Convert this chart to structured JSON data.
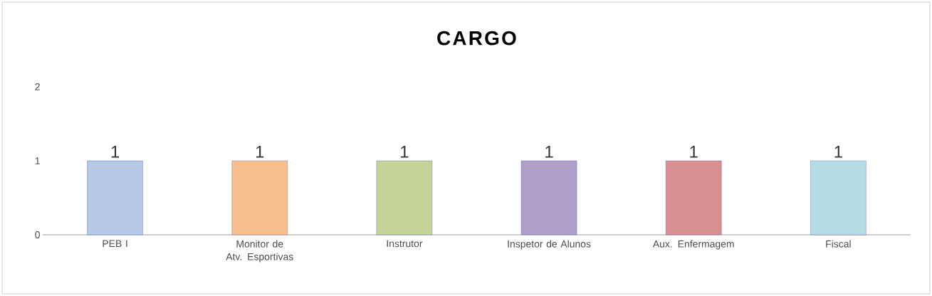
{
  "chart_data": {
    "type": "bar",
    "title": "CARGO",
    "categories": [
      "PEB I",
      "Monitor de Atv. Esportivas",
      "Instrutor",
      "Inspetor de Alunos",
      "Aux. Enfermagem",
      "Fiscal"
    ],
    "values": [
      1,
      1,
      1,
      1,
      1,
      1
    ],
    "colors": [
      "#b6c9e6",
      "#f8bf8e",
      "#c3d496",
      "#b09fc9",
      "#d89190",
      "#b5dce5"
    ],
    "ylim": [
      0,
      2
    ],
    "yticks": [
      0,
      1,
      2
    ],
    "data_labels": true
  }
}
